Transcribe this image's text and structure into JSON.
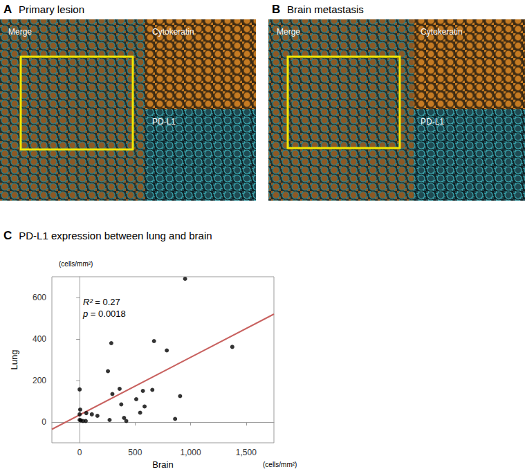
{
  "panels": [
    {
      "label": "A",
      "title": "Primary lesion",
      "merge": "Merge",
      "channels": [
        "Cytokeratin",
        "PD-L1"
      ]
    },
    {
      "label": "B",
      "title": "Brain metastasis",
      "merge": "Merge",
      "channels": [
        "Cytokeratin",
        "PD-L1"
      ]
    }
  ],
  "chart_data": {
    "type": "scatter",
    "label": "C",
    "title": "PD-L1 expression between lung and brain",
    "x_label": "Brain",
    "y_label": "Lung",
    "x_unit": "(cells/mm²)",
    "y_unit": "(cells/mm²)",
    "annotations": [
      "R² = 0.27",
      "p = 0.0018"
    ],
    "x": [
      0,
      5,
      0,
      0,
      10,
      30,
      55,
      60,
      110,
      160,
      255,
      285,
      295,
      360,
      375,
      400,
      420,
      270,
      510,
      545,
      570,
      585,
      655,
      670,
      785,
      860,
      905,
      950,
      1375
    ],
    "values": [
      157,
      60,
      37,
      10,
      8,
      5,
      5,
      43,
      37,
      30,
      245,
      380,
      135,
      160,
      85,
      20,
      5,
      10,
      110,
      45,
      150,
      75,
      155,
      390,
      345,
      15,
      125,
      690,
      362
    ],
    "color": "#000000",
    "fit_line": {
      "x": [
        -250,
        1750
      ],
      "y": [
        -35,
        520
      ],
      "color": "#c8615f"
    },
    "xlim": [
      -250,
      1750
    ],
    "xticks": [
      0,
      500,
      1000,
      1500
    ],
    "ylim": [
      -100,
      700
    ],
    "yticks": [
      0,
      200,
      400,
      600
    ],
    "grid": false
  }
}
